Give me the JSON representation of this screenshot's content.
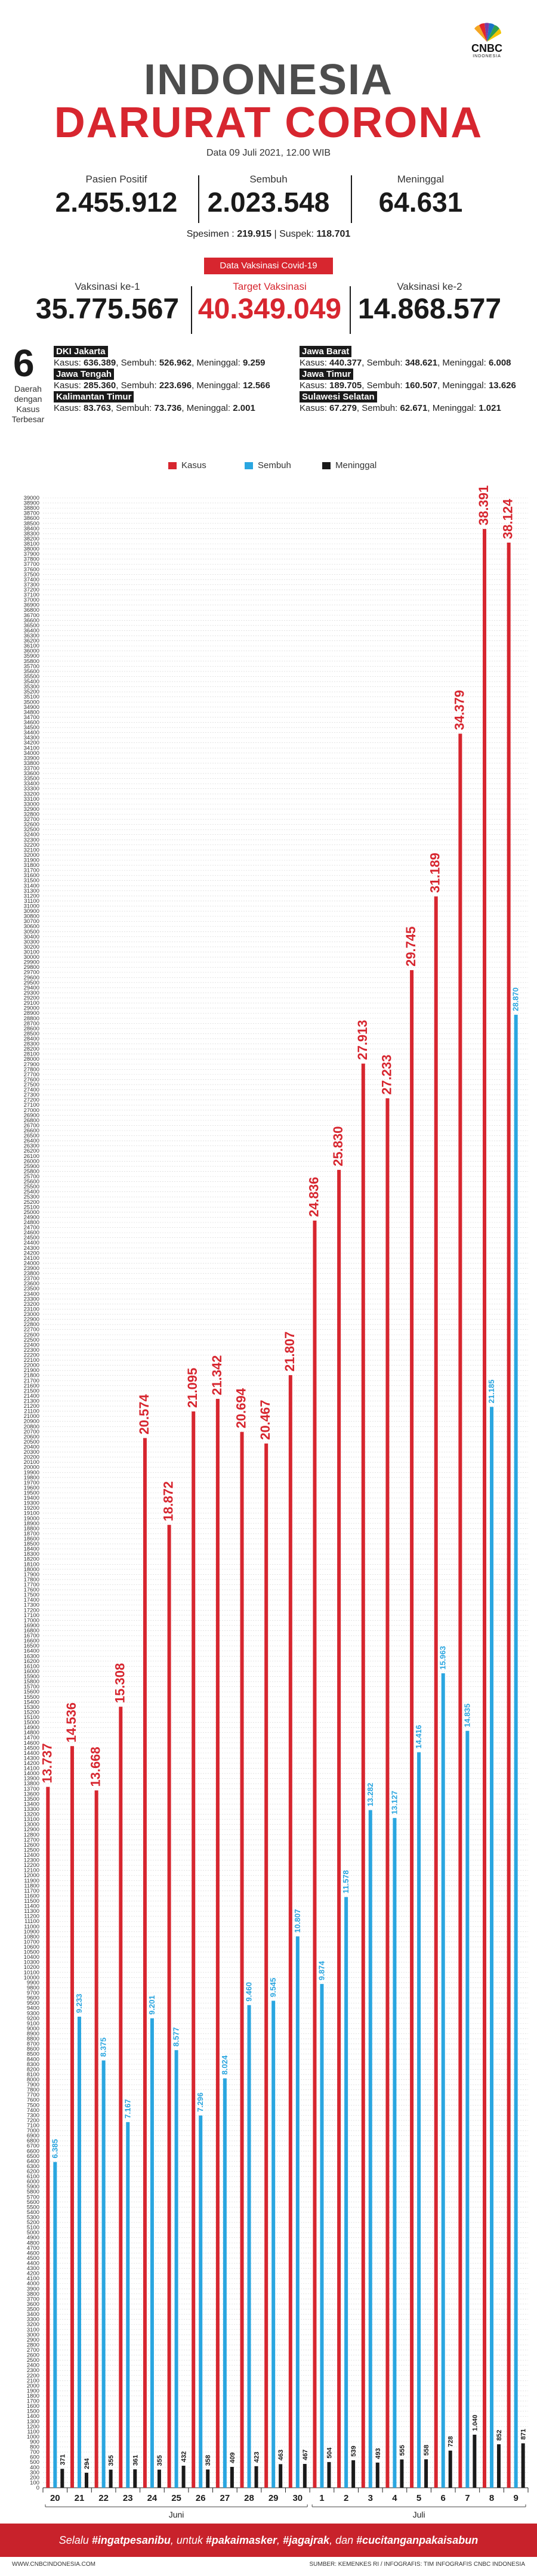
{
  "header": {
    "logo_text": "CNBC",
    "logo_sub": "INDONESIA",
    "title_line1": "INDONESIA",
    "title_line2": "DARURAT CORONA",
    "date": "Data 09 Juli 2021, 12.00 WIB"
  },
  "stats": [
    {
      "label": "Pasien Positif",
      "value": "2.455.912"
    },
    {
      "label": "Sembuh",
      "value": "2.023.548"
    },
    {
      "label": "Meninggal",
      "value": "64.631"
    }
  ],
  "specimen": {
    "label1": "Spesimen :",
    "value1": "219.915",
    "sep": "|",
    "label2": "Suspek:",
    "value2": "118.701"
  },
  "vaccine": {
    "badge": "Data Vaksinasi Covid-19",
    "items": [
      {
        "label": "Vaksinasi ke-1",
        "value": "35.775.567"
      },
      {
        "label": "Target Vaksinasi",
        "value": "40.349.049"
      },
      {
        "label": "Vaksinasi ke-2",
        "value": "14.868.577"
      }
    ]
  },
  "regions": {
    "count": "6",
    "caption_lines": [
      "Daerah",
      "dengan",
      "Kasus",
      "Terbesar"
    ],
    "items": [
      {
        "name": "DKI Jakarta",
        "kasus": "636.389",
        "sembuh": "526.962",
        "meninggal": "9.259"
      },
      {
        "name": "Jawa Barat",
        "kasus": "440.377",
        "sembuh": "348.621",
        "meninggal": "6.008"
      },
      {
        "name": "Jawa Tengah",
        "kasus": "285.360",
        "sembuh": "223.696",
        "meninggal": "12.566"
      },
      {
        "name": "Jawa Timur",
        "kasus": "189.705",
        "sembuh": "160.507",
        "meninggal": "13.626"
      },
      {
        "name": "Kalimantan Timur",
        "kasus": "83.763",
        "sembuh": "73.736",
        "meninggal": "2.001"
      },
      {
        "name": "Sulawesi Selatan",
        "kasus": "67.279",
        "sembuh": "62.671",
        "meninggal": "1.021"
      }
    ],
    "labels": {
      "kasus": "Kasus:",
      "sembuh": "Sembuh:",
      "meninggal": "Meninggal:"
    }
  },
  "chart_data": {
    "type": "bar",
    "categories": [
      "20",
      "21",
      "22",
      "23",
      "24",
      "25",
      "26",
      "27",
      "28",
      "29",
      "30",
      "1",
      "2",
      "3",
      "4",
      "5",
      "6",
      "7",
      "8",
      "9"
    ],
    "month_labels": [
      {
        "label": "Juni",
        "span": [
          "20",
          "30"
        ]
      },
      {
        "label": "Juli",
        "span": [
          "1",
          "9"
        ]
      }
    ],
    "series": [
      {
        "name": "Kasus",
        "color": "#d7262f",
        "values": [
          13737,
          14536,
          13668,
          15308,
          20574,
          18872,
          21095,
          21342,
          20694,
          20467,
          21807,
          24836,
          25830,
          27913,
          27233,
          29745,
          31189,
          34379,
          38391,
          38124
        ],
        "labels": [
          "13.737",
          "14.536",
          "13.668",
          "15.308",
          "20.574",
          "18.872",
          "21.095",
          "21.342",
          "20.694",
          "20.467",
          "21.807",
          "24.836",
          "25.830",
          "27.913",
          "27.233",
          "29.745",
          "31.189",
          "34.379",
          "38.391",
          "38.124"
        ]
      },
      {
        "name": "Sembuh",
        "color": "#2aa6e0",
        "values": [
          6385,
          9233,
          8375,
          7167,
          9201,
          8577,
          7296,
          8024,
          9460,
          9545,
          10807,
          9874,
          11578,
          13282,
          13127,
          14416,
          15963,
          14835,
          21185,
          28870
        ],
        "labels": [
          "6.385",
          "9.233",
          "8.375",
          "7.167",
          "9.201",
          "8.577",
          "7.296",
          "8.024",
          "9.460",
          "9.545",
          "10.807",
          "9.874",
          "11.578",
          "13.282",
          "13.127",
          "14.416",
          "15.963",
          "14.835",
          "21.185",
          "28.870"
        ]
      },
      {
        "name": "Meninggal",
        "color": "#1a1a1a",
        "values": [
          371,
          294,
          355,
          361,
          355,
          432,
          358,
          409,
          423,
          463,
          467,
          504,
          539,
          493,
          555,
          558,
          728,
          1040,
          852,
          871
        ],
        "labels": [
          "371",
          "294",
          "355",
          "361",
          "355",
          "432",
          "358",
          "409",
          "423",
          "463",
          "467",
          "504",
          "539",
          "493",
          "555",
          "558",
          "728",
          "1.040",
          "852",
          "871"
        ]
      }
    ],
    "ylim": [
      0,
      39000
    ],
    "ytick_step": 100,
    "grid": true,
    "legend": "top-center"
  },
  "footer": {
    "text_parts": [
      "Selalu ",
      "#ingatpesanibu",
      ", untuk ",
      "#pakaimasker",
      ", ",
      "#jagajrak",
      ", dan ",
      "#cucitanganpakaisabun"
    ],
    "left_credit": "WWW.CNBCINDONESIA.COM",
    "right_credit": "SUMBER: KEMENKES RI / INFOGRAFIS: TIM INFOGRAFIS CNBC INDONESIA"
  }
}
